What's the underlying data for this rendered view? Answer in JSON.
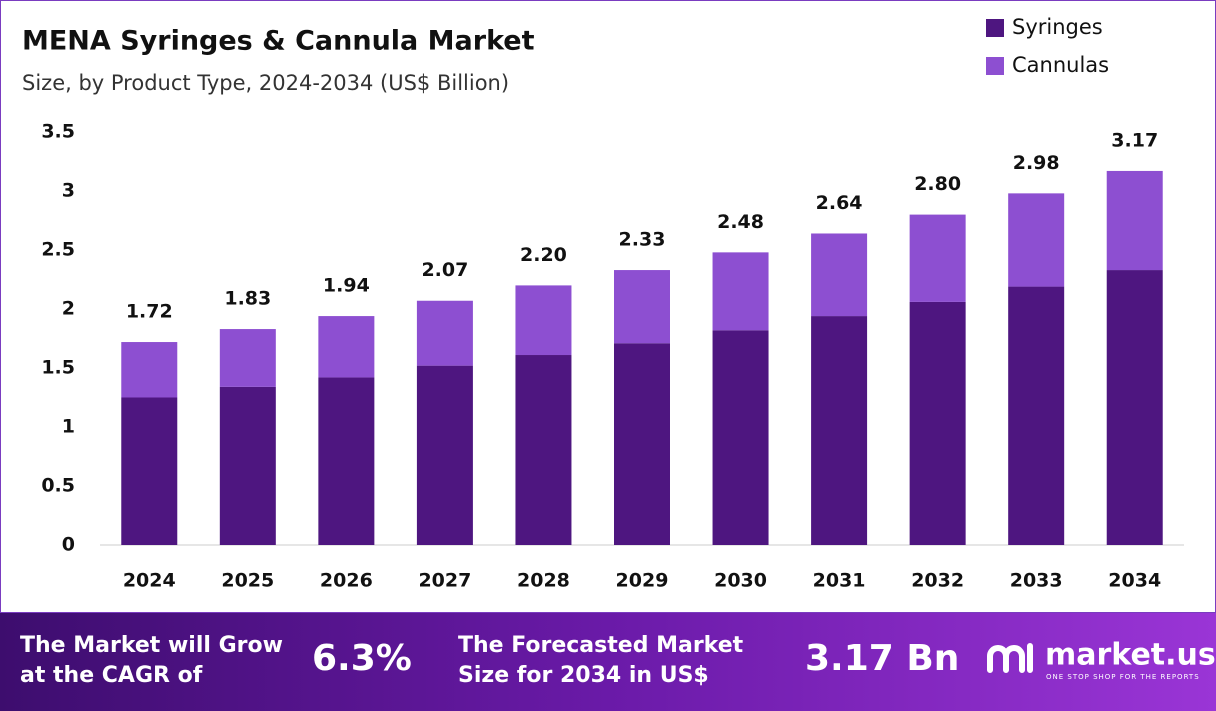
{
  "chart_data": {
    "type": "stacked-bar",
    "title": "MENA Syringes & Cannula Market",
    "subtitle": "Size, by Product Type, 2024-2034 (US$ Billion)",
    "categories": [
      "2024",
      "2025",
      "2026",
      "2027",
      "2028",
      "2029",
      "2030",
      "2031",
      "2032",
      "2033",
      "2034"
    ],
    "series": [
      {
        "name": "Syringes",
        "color": "#4e1680",
        "values": [
          1.25,
          1.34,
          1.42,
          1.52,
          1.61,
          1.71,
          1.82,
          1.94,
          2.06,
          2.19,
          2.33
        ]
      },
      {
        "name": "Cannulas",
        "color": "#8d4fd1",
        "values": [
          0.47,
          0.49,
          0.52,
          0.55,
          0.59,
          0.62,
          0.66,
          0.7,
          0.74,
          0.79,
          0.84
        ]
      }
    ],
    "totals": [
      1.72,
      1.83,
      1.94,
      2.07,
      2.2,
      2.33,
      2.48,
      2.64,
      2.8,
      2.98,
      3.17
    ],
    "total_labels": [
      "1.72",
      "1.83",
      "1.94",
      "2.07",
      "2.20",
      "2.33",
      "2.48",
      "2.64",
      "2.80",
      "2.98",
      "3.17"
    ],
    "ylim": [
      0,
      3.5
    ],
    "yticks": [
      0,
      0.5,
      1,
      1.5,
      2,
      2.5,
      3,
      3.5
    ],
    "grid": false,
    "legend": "top-right"
  },
  "footer": {
    "cagr_text": [
      "The Market will Grow",
      "at the CAGR of"
    ],
    "cagr_value": "6.3%",
    "forecast_text": [
      "The Forecasted Market",
      "Size for 2034 in US$"
    ],
    "forecast_value": "3.17 Bn",
    "brand": "market.us",
    "tagline": "ONE STOP SHOP FOR THE REPORTS"
  }
}
